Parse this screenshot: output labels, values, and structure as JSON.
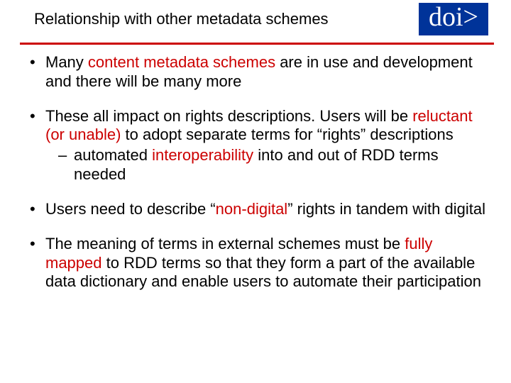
{
  "header": {
    "title": "Relationship with other metadata schemes",
    "logo": "doi>"
  },
  "colors": {
    "accent_red": "#cc0000",
    "logo_bg": "#003399",
    "logo_text": "#ffffff",
    "body_text": "#000000",
    "background": "#ffffff"
  },
  "typography": {
    "body_font": "Comic Sans MS",
    "logo_font": "Times New Roman",
    "title_fontsize": 22,
    "bullet_fontsize": 22,
    "logo_fontsize": 38
  },
  "bullets": {
    "b1_pre": "Many ",
    "b1_red": "content metadata schemes",
    "b1_post": " are in use and development and there will be many more",
    "b2_pre": "These all impact on rights descriptions. Users will be ",
    "b2_red": "reluctant (or unable)",
    "b2_post": " to adopt separate terms for “rights” descriptions",
    "b2_sub_pre": "automated ",
    "b2_sub_red": "interoperability",
    "b2_sub_post": " into and out of RDD terms needed",
    "b3_pre": "Users need to describe “",
    "b3_red": "non-digital",
    "b3_post": "” rights in tandem with digital",
    "b4_pre": "The meaning of terms in external schemes must be ",
    "b4_red": "fully mapped",
    "b4_post": " to RDD terms so that they form a part of the available data dictionary and enable users to automate their participation"
  }
}
